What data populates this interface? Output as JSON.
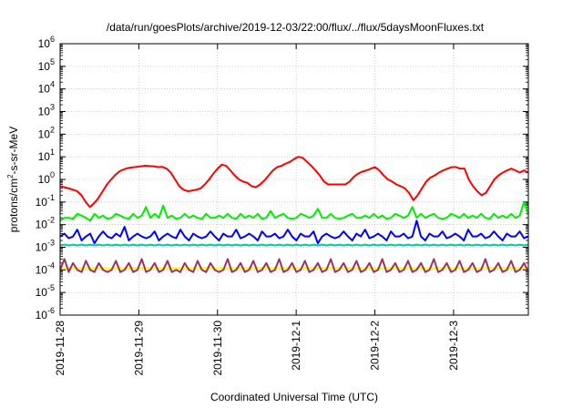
{
  "chart_data": {
    "type": "line",
    "title": "/data/run/goesPlots/archive/2019-12-03/22:00/flux/../flux/5daysMoonFluxes.txt",
    "xlabel": "Coordinated Universal Time (UTC)",
    "ylabel": "protons/cm2-s-sr-MeV",
    "ylabel_parts": {
      "main": "protons/cm",
      "sup": "2",
      "rest": "-s-sr-MeV"
    },
    "y_scale": "log",
    "ylim_exp": [
      -6,
      6
    ],
    "y_tick_exponents": [
      -6,
      -5,
      -4,
      -3,
      -2,
      -1,
      0,
      1,
      2,
      3,
      4,
      5,
      6
    ],
    "y_tick_base": "10",
    "x_ticks": [
      "2019-11-28",
      "2019-11-29",
      "2019-11-30",
      "2019-12-1",
      "2019-12-2",
      "2019-12-3"
    ],
    "x_days_span": 5.95,
    "grid": true,
    "series": [
      {
        "color": "#ff0000",
        "values": [
          0.5,
          0.45,
          0.4,
          0.35,
          0.3,
          0.2,
          0.1,
          0.06,
          0.09,
          0.15,
          0.3,
          0.6,
          1.0,
          1.6,
          2.3,
          2.8,
          3.2,
          3.4,
          3.6,
          3.8,
          4.0,
          3.9,
          3.8,
          3.5,
          3.6,
          3.0,
          2.0,
          1.0,
          0.5,
          0.35,
          0.3,
          0.32,
          0.35,
          0.4,
          0.6,
          1.0,
          1.8,
          3.0,
          4.5,
          4.0,
          2.5,
          1.5,
          1.0,
          0.8,
          0.7,
          0.5,
          0.45,
          0.6,
          0.9,
          1.5,
          2.5,
          3.5,
          4.0,
          5.0,
          6.0,
          8.0,
          10.0,
          9.0,
          6.0,
          4.0,
          2.5,
          1.5,
          0.8,
          0.6,
          0.6,
          0.6,
          0.6,
          0.6,
          0.8,
          1.3,
          1.8,
          2.2,
          2.5,
          3.0,
          3.5,
          2.5,
          1.5,
          1.0,
          0.8,
          0.6,
          0.5,
          0.4,
          0.25,
          0.12,
          0.2,
          0.4,
          0.8,
          1.2,
          1.5,
          2.0,
          2.5,
          3.0,
          3.5,
          3.5,
          3.0,
          3.0,
          1.0,
          0.5,
          0.3,
          0.2,
          0.25,
          0.5,
          1.0,
          1.5,
          2.0,
          2.5,
          3.0,
          2.5,
          2.0,
          2.5,
          2.0
        ]
      },
      {
        "color": "#00ee00",
        "values": [
          0.015,
          0.02,
          0.02,
          0.018,
          0.03,
          0.025,
          0.02,
          0.015,
          0.03,
          0.02,
          0.025,
          0.018,
          0.02,
          0.03,
          0.025,
          0.02,
          0.018,
          0.03,
          0.02,
          0.025,
          0.06,
          0.02,
          0.03,
          0.02,
          0.07,
          0.02,
          0.025,
          0.018,
          0.02,
          0.03,
          0.02,
          0.025,
          0.02,
          0.018,
          0.03,
          0.02,
          0.02,
          0.025,
          0.02,
          0.03,
          0.02,
          0.018,
          0.03,
          0.02,
          0.025,
          0.02,
          0.03,
          0.018,
          0.02,
          0.04,
          0.02,
          0.025,
          0.03,
          0.02,
          0.018,
          0.02,
          0.03,
          0.025,
          0.02,
          0.025,
          0.05,
          0.02,
          0.02,
          0.03,
          0.02,
          0.018,
          0.02,
          0.025,
          0.03,
          0.02,
          0.02,
          0.025,
          0.02,
          0.03,
          0.02,
          0.025,
          0.018,
          0.02,
          0.03,
          0.025,
          0.02,
          0.025,
          0.06,
          0.02,
          0.03,
          0.02,
          0.025,
          0.03,
          0.02,
          0.018,
          0.02,
          0.03,
          0.025,
          0.02,
          0.03,
          0.02,
          0.025,
          0.02,
          0.03,
          0.02,
          0.018,
          0.03,
          0.02,
          0.025,
          0.02,
          0.03,
          0.02,
          0.025,
          0.1,
          0.03
        ]
      },
      {
        "color": "#00cc99",
        "values": [
          0.0012,
          0.0013,
          0.0012,
          0.0013,
          0.0012,
          0.0013,
          0.0012,
          0.0013,
          0.0012,
          0.0013,
          0.0012,
          0.0013,
          0.0012,
          0.0013,
          0.0012,
          0.0013,
          0.0012,
          0.0013,
          0.0012,
          0.0013,
          0.0012,
          0.0013,
          0.0012,
          0.0013,
          0.0012,
          0.0013,
          0.0012,
          0.0013,
          0.0012,
          0.0013,
          0.0012,
          0.0013,
          0.0012,
          0.0013,
          0.0012,
          0.0013,
          0.0012,
          0.0013,
          0.0012,
          0.0013,
          0.0012,
          0.0013,
          0.0012,
          0.0013,
          0.0012,
          0.0013,
          0.0012,
          0.0013,
          0.0012,
          0.0013,
          0.0012,
          0.0013,
          0.0012,
          0.0013,
          0.0012,
          0.0013,
          0.0012,
          0.0013,
          0.0012,
          0.0013,
          0.0012,
          0.0013,
          0.0012,
          0.0013,
          0.0012,
          0.0013,
          0.0012,
          0.0013,
          0.0012,
          0.0013,
          0.0012,
          0.0013,
          0.0012,
          0.0013,
          0.0012,
          0.0013,
          0.0012,
          0.0013,
          0.0012,
          0.0013,
          0.0012,
          0.0013,
          0.0012,
          0.0013,
          0.0012,
          0.0013,
          0.0012,
          0.0013,
          0.0012,
          0.0013,
          0.0012,
          0.0013,
          0.0012,
          0.0013,
          0.0012,
          0.0013,
          0.0012,
          0.0013,
          0.0012,
          0.0013,
          0.0012,
          0.0013,
          0.0012,
          0.0013,
          0.0012,
          0.0013,
          0.0012,
          0.0013,
          0.0012,
          0.0013
        ]
      },
      {
        "color": "#0000ff",
        "values": [
          0.003,
          0.004,
          0.0025,
          0.003,
          0.006,
          0.002,
          0.003,
          0.004,
          0.0015,
          0.003,
          0.005,
          0.003,
          0.0025,
          0.004,
          0.003,
          0.008,
          0.002,
          0.003,
          0.004,
          0.003,
          0.0025,
          0.003,
          0.005,
          0.002,
          0.003,
          0.004,
          0.003,
          0.0025,
          0.006,
          0.003,
          0.002,
          0.004,
          0.003,
          0.0025,
          0.003,
          0.005,
          0.003,
          0.002,
          0.004,
          0.003,
          0.003,
          0.006,
          0.0025,
          0.003,
          0.004,
          0.003,
          0.002,
          0.005,
          0.003,
          0.003,
          0.004,
          0.0025,
          0.003,
          0.006,
          0.003,
          0.002,
          0.004,
          0.003,
          0.003,
          0.005,
          0.0015,
          0.003,
          0.004,
          0.003,
          0.0025,
          0.003,
          0.005,
          0.003,
          0.002,
          0.004,
          0.003,
          0.006,
          0.0025,
          0.003,
          0.004,
          0.003,
          0.002,
          0.005,
          0.003,
          0.003,
          0.004,
          0.0025,
          0.003,
          0.015,
          0.003,
          0.002,
          0.004,
          0.003,
          0.003,
          0.005,
          0.0025,
          0.003,
          0.004,
          0.003,
          0.002,
          0.006,
          0.003,
          0.003,
          0.004,
          0.0025,
          0.003,
          0.005,
          0.003,
          0.002,
          0.004,
          0.003,
          0.003,
          0.005,
          0.0025,
          0.003
        ]
      },
      {
        "color": "#ffff00",
        "values": [
          0.00012,
          0.00012,
          0.00012,
          0.00012,
          0.00012,
          0.00012,
          0.00012,
          0.00012,
          0.00012,
          0.00012,
          0.00012,
          0.00012,
          0.00012,
          0.00012,
          0.00012,
          0.00012,
          0.00012,
          0.00012,
          0.00012,
          0.00012,
          0.00012,
          0.00012,
          0.00012,
          0.00012,
          0.00012,
          0.00012,
          0.00012,
          0.00012,
          0.00012,
          0.00012,
          0.00012,
          0.00012,
          0.00012,
          0.00012,
          0.00012,
          0.00012,
          0.00012,
          0.00012,
          0.00012,
          0.00012,
          0.00012,
          0.00012,
          0.00012,
          0.00012,
          0.00012,
          0.00012,
          0.00012,
          0.00012,
          0.00012,
          0.00012,
          0.00012,
          0.00012,
          0.00012,
          0.00012,
          0.00012,
          0.00012,
          0.00012,
          0.00012,
          0.00012,
          0.00012,
          0.00012,
          0.00012,
          0.00012,
          0.00012,
          0.00012,
          0.00012,
          0.00012,
          0.00012,
          0.00012,
          0.00012,
          0.00012,
          0.00012,
          0.00012,
          0.00012,
          0.00012,
          0.00012,
          0.00012,
          0.00012,
          0.00012,
          0.00012,
          0.00012,
          0.00012,
          0.00012,
          0.00012,
          0.00012,
          0.00012,
          0.00012,
          0.00012,
          0.00012,
          0.00012,
          0.00012,
          0.00012,
          0.00012,
          0.00012,
          0.00012,
          0.00012,
          0.00012,
          0.00012,
          0.00012,
          0.00012,
          0.00012,
          0.00012,
          0.00012,
          0.00012,
          0.00012,
          0.00012,
          0.00012,
          0.00012,
          0.00012,
          0.00012
        ]
      },
      {
        "color": "#993366",
        "values": [
          0.0001,
          0.0003,
          8e-05,
          0.0002,
          0.0001,
          8e-05,
          0.00025,
          0.0001,
          8e-05,
          0.0002,
          0.0001,
          8e-05,
          0.0001,
          0.00025,
          8e-05,
          0.0001,
          0.0002,
          8e-05,
          0.0001,
          0.0003,
          8e-05,
          0.0001,
          0.0002,
          8e-05,
          0.0001,
          0.00025,
          8e-05,
          0.0001,
          8e-05,
          0.0002,
          0.0001,
          8e-05,
          0.00025,
          0.0001,
          8e-05,
          0.0002,
          0.0001,
          8e-05,
          0.0001,
          0.0003,
          8e-05,
          0.0001,
          0.0002,
          8e-05,
          0.0001,
          0.00025,
          8e-05,
          0.0001,
          0.0002,
          8e-05,
          0.0001,
          0.0003,
          8e-05,
          0.0001,
          0.0002,
          8e-05,
          0.0001,
          0.00025,
          8e-05,
          0.0001,
          0.0002,
          8e-05,
          0.0001,
          0.0003,
          8e-05,
          0.0001,
          0.0002,
          8e-05,
          0.0001,
          0.00025,
          8e-05,
          0.0001,
          0.0002,
          8e-05,
          0.0001,
          0.0003,
          8e-05,
          0.0001,
          0.0002,
          8e-05,
          0.0001,
          0.00025,
          8e-05,
          0.0001,
          0.0002,
          8e-05,
          0.0001,
          0.0003,
          8e-05,
          0.0001,
          0.0002,
          8e-05,
          0.0001,
          0.00025,
          8e-05,
          0.0001,
          0.0002,
          8e-05,
          0.0001,
          0.0003,
          8e-05,
          0.0001,
          0.0002,
          8e-05,
          0.0001,
          0.00025,
          8e-05,
          0.0001,
          0.0002,
          8e-05
        ]
      }
    ]
  }
}
